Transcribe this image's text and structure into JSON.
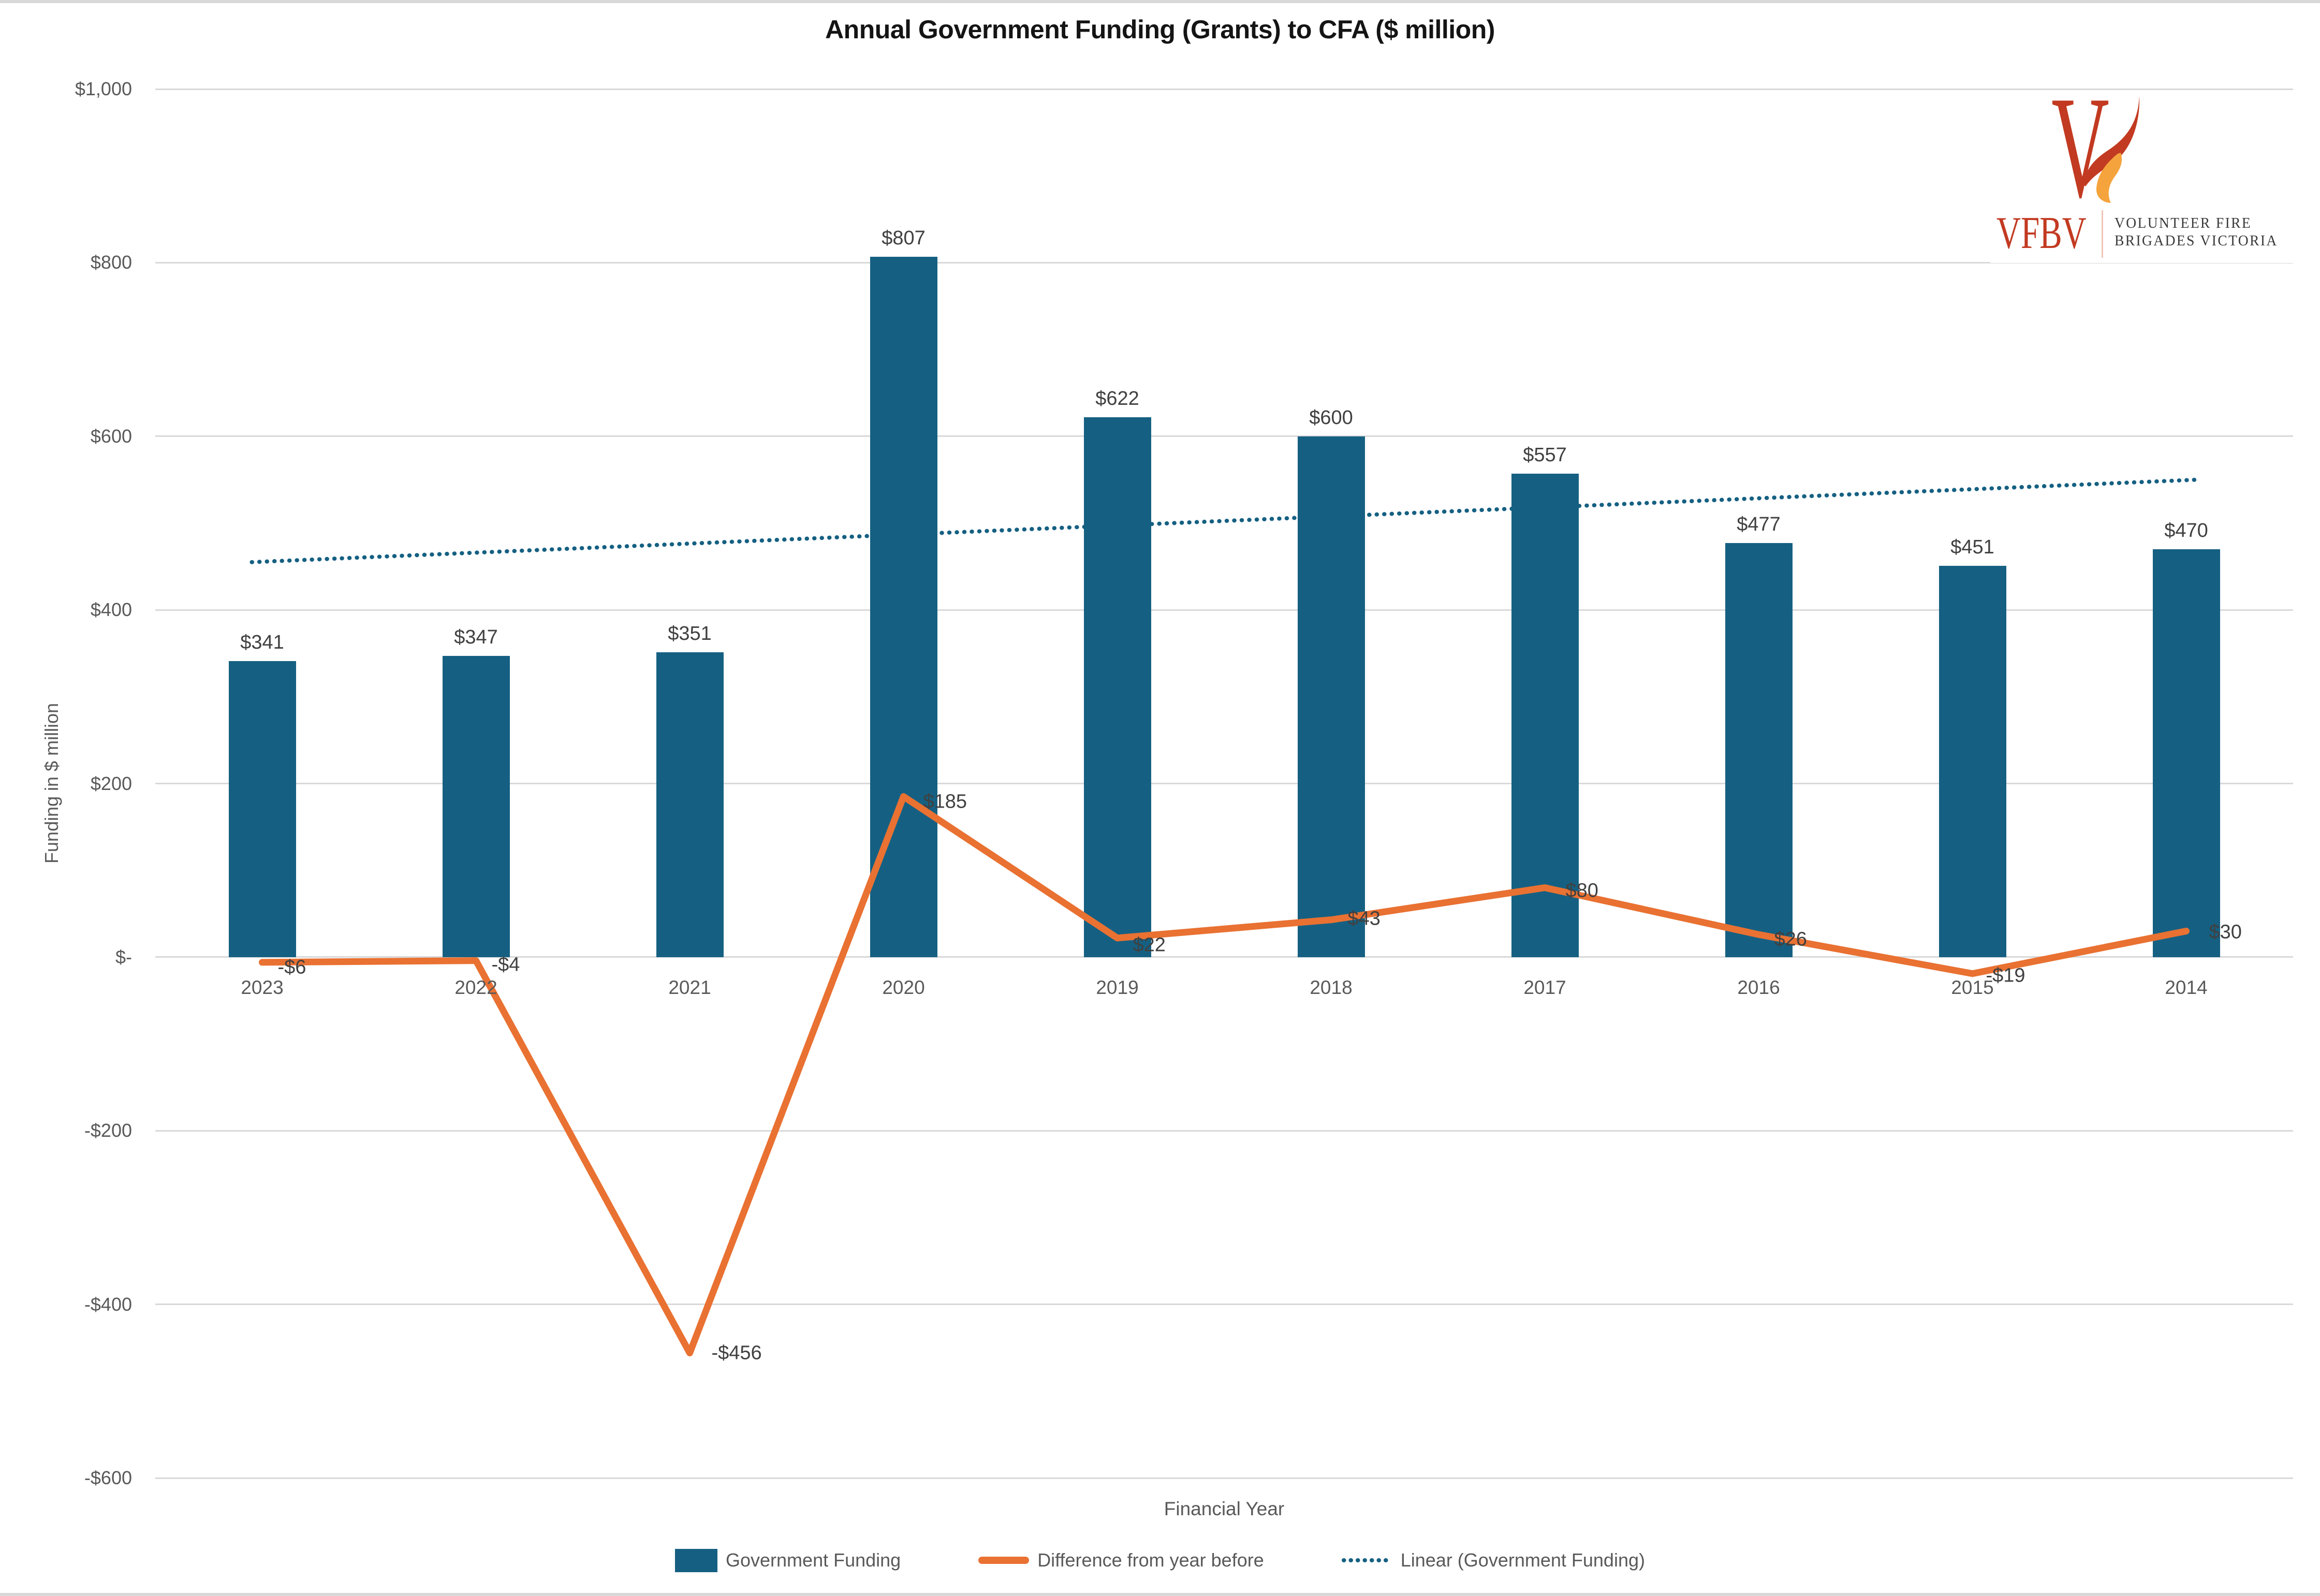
{
  "title": "Annual Government Funding (Grants) to CFA ($ million)",
  "logo": {
    "abbr": "VFBV",
    "name_line1": "VOLUNTEER FIRE",
    "name_line2": "BRIGADES VICTORIA"
  },
  "chart_data": {
    "type": "bar",
    "title": "Annual Government Funding (Grants) to CFA ($ million)",
    "categories": [
      "2023",
      "2022",
      "2021",
      "2020",
      "2019",
      "2018",
      "2017",
      "2016",
      "2015",
      "2014"
    ],
    "series": [
      {
        "name": "Government Funding",
        "type": "bar",
        "color": "#156082",
        "values": [
          341,
          347,
          351,
          807,
          622,
          600,
          557,
          477,
          451,
          470
        ],
        "labels": [
          "$341",
          "$347",
          "$351",
          "$807",
          "$622",
          "$600",
          "$557",
          "$477",
          "$451",
          "$470"
        ]
      },
      {
        "name": "Difference from year before",
        "type": "line",
        "color": "#E97132",
        "values": [
          -6,
          -4,
          -456,
          185,
          22,
          43,
          80,
          26,
          -19,
          30
        ],
        "labels": [
          "-$6",
          "-$4",
          "-$456",
          "$185",
          "$22",
          "$43",
          "$80",
          "$26",
          "-$19",
          "$30"
        ]
      },
      {
        "name": "Linear (Government Funding)",
        "type": "trendline",
        "style": "dotted",
        "color": "#156082",
        "endpoints": [
          455,
          550
        ]
      }
    ],
    "xlabel": "Financial Year",
    "ylabel": "Funding in $ million",
    "ylim": [
      -600,
      1000
    ],
    "ytick_step": 200,
    "yticks": [
      {
        "value": 1000,
        "label": "$1,000"
      },
      {
        "value": 800,
        "label": "$800"
      },
      {
        "value": 600,
        "label": "$600"
      },
      {
        "value": 400,
        "label": "$400"
      },
      {
        "value": 200,
        "label": "$200"
      },
      {
        "value": 0,
        "label": "$-"
      },
      {
        "value": -200,
        "label": "-$200"
      },
      {
        "value": -400,
        "label": "-$400"
      },
      {
        "value": -600,
        "label": "-$600"
      }
    ],
    "grid": true,
    "legend_position": "bottom"
  },
  "colors": {
    "bar": "#156082",
    "line": "#E97132",
    "trend": "#156082",
    "grid": "#d9d9d9",
    "axis_text": "#595959",
    "data_label": "#404040",
    "logo_red": "#C23A21",
    "logo_orange": "#F5A33C",
    "logo_text": "#3a3a3a"
  }
}
